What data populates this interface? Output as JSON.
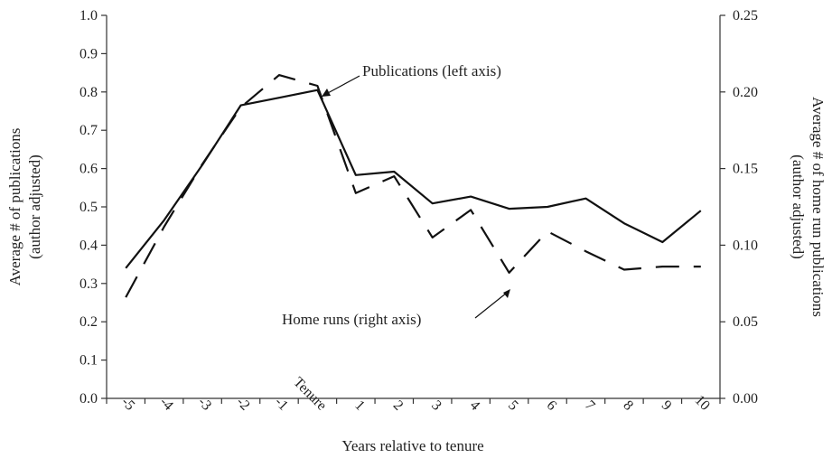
{
  "chart_data": {
    "type": "line",
    "xlabel": "Years relative to tenure",
    "ylabel_left": [
      "Average # of publications",
      "(author adjusted)"
    ],
    "ylabel_right": [
      "Average # of home run publications",
      "(author adjusted)"
    ],
    "categories": [
      "-5",
      "-4",
      "-3",
      "-2",
      "-1",
      "Tenure",
      "1",
      "2",
      "3",
      "4",
      "5",
      "6",
      "7",
      "8",
      "9",
      "10"
    ],
    "ylim_left": [
      0,
      1.0
    ],
    "ylim_right": [
      0,
      0.25
    ],
    "yticks_left": [
      "0.0",
      "0.1",
      "0.2",
      "0.3",
      "0.4",
      "0.5",
      "0.6",
      "0.7",
      "0.8",
      "0.9",
      "1.0"
    ],
    "yticks_right": [
      "0.00",
      "0.05",
      "0.10",
      "0.15",
      "0.20",
      "0.25"
    ],
    "grid": false,
    "series": [
      {
        "name": "Publications",
        "axis": "left",
        "style": "solid",
        "values": [
          0.34,
          0.465,
          0.61,
          0.765,
          0.785,
          0.805,
          0.583,
          0.592,
          0.509,
          0.527,
          0.495,
          0.5,
          0.522,
          0.457,
          0.408,
          0.49
        ]
      },
      {
        "name": "Home runs",
        "axis": "right",
        "style": "dashed",
        "values": [
          0.066,
          0.112,
          0.153,
          0.19,
          0.211,
          0.204,
          0.134,
          0.145,
          0.105,
          0.123,
          0.082,
          0.109,
          0.096,
          0.084,
          0.086,
          0.086
        ]
      }
    ],
    "annotations": [
      {
        "text": "Publications (left axis)",
        "points_to": "Publications"
      },
      {
        "text": "Home runs (right axis)",
        "points_to": "Home runs"
      }
    ]
  }
}
